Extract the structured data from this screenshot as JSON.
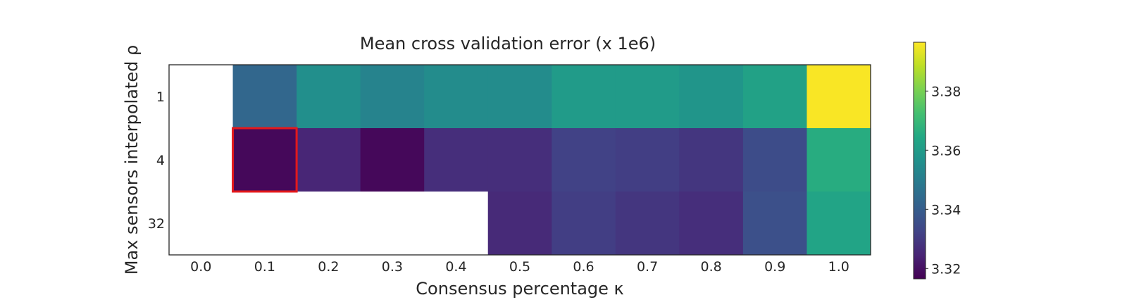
{
  "chart_data": {
    "type": "heatmap",
    "title": "Mean cross validation error (x 1e6)",
    "xlabel": "Consensus percentage κ",
    "ylabel": "Max sensors interpolated ρ",
    "x_categories": [
      "0.0",
      "0.1",
      "0.2",
      "0.3",
      "0.4",
      "0.5",
      "0.6",
      "0.7",
      "0.8",
      "0.9",
      "1.0"
    ],
    "y_categories": [
      "1",
      "4",
      "32"
    ],
    "values": [
      [
        null,
        3.343,
        3.356,
        3.352,
        3.355,
        3.355,
        3.36,
        3.36,
        3.358,
        3.362,
        3.396
      ],
      [
        null,
        3.318,
        3.325,
        3.318,
        3.327,
        3.327,
        3.332,
        3.331,
        3.329,
        3.335,
        3.366
      ],
      [
        null,
        null,
        null,
        null,
        null,
        3.326,
        3.331,
        3.329,
        3.327,
        3.336,
        3.363
      ]
    ],
    "colorbar": {
      "vmin": 3.3165,
      "vmax": 3.3965,
      "ticks": [
        "3.32",
        "3.34",
        "3.36",
        "3.38"
      ],
      "colormap": "viridis"
    },
    "highlight": {
      "row": 1,
      "col": 1,
      "color": "#e3191c"
    },
    "missing_color": "#ffffff",
    "grid": false
  }
}
